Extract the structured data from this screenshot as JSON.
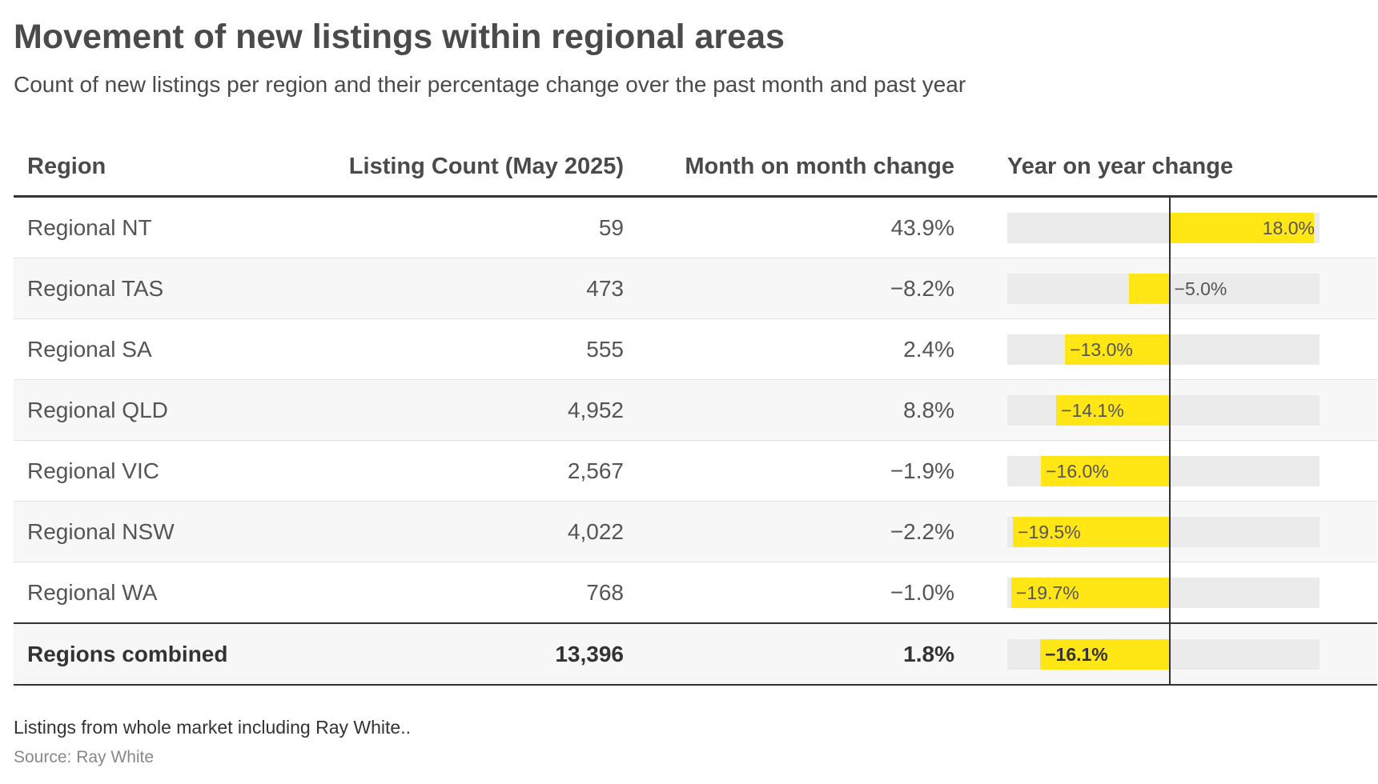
{
  "title": "Movement of new listings within regional areas",
  "subtitle": "Count of new listings per region and their percentage change over the past month and past year",
  "columns": {
    "region": "Region",
    "count": "Listing Count (May 2025)",
    "mom": "Month on month change",
    "yoy": "Year on year change"
  },
  "chart_data": {
    "type": "table",
    "title": "Movement of new listings within regional areas",
    "subtitle": "Count of new listings per region and their percentage change over the past month and past year",
    "columns": [
      "Region",
      "Listing Count (May 2025)",
      "Month on month change",
      "Year on year change"
    ],
    "yoy_bar_range": [
      -20.2,
      18.7
    ],
    "rows": [
      {
        "region": "Regional NT",
        "count": "59",
        "mom": "43.9%",
        "yoy": 18.0,
        "yoy_label": "18.0%"
      },
      {
        "region": "Regional TAS",
        "count": "473",
        "mom": "−8.2%",
        "yoy": -5.0,
        "yoy_label": "−5.0%"
      },
      {
        "region": "Regional SA",
        "count": "555",
        "mom": "2.4%",
        "yoy": -13.0,
        "yoy_label": "−13.0%"
      },
      {
        "region": "Regional QLD",
        "count": "4,952",
        "mom": "8.8%",
        "yoy": -14.1,
        "yoy_label": "−14.1%"
      },
      {
        "region": "Regional VIC",
        "count": "2,567",
        "mom": "−1.9%",
        "yoy": -16.0,
        "yoy_label": "−16.0%"
      },
      {
        "region": "Regional NSW",
        "count": "4,022",
        "mom": "−2.2%",
        "yoy": -19.5,
        "yoy_label": "−19.5%"
      },
      {
        "region": "Regional WA",
        "count": "768",
        "mom": "−1.0%",
        "yoy": -19.7,
        "yoy_label": "−19.7%"
      }
    ],
    "total": {
      "region": "Regions combined",
      "count": "13,396",
      "mom": "1.8%",
      "yoy": -16.1,
      "yoy_label": "−16.1%"
    }
  },
  "colors": {
    "bar_fill": "#ffe614",
    "bar_track": "#ebebeb",
    "zero_line": "#333333"
  },
  "note": "Listings from whole market including Ray White..",
  "source": "Source: Ray White"
}
